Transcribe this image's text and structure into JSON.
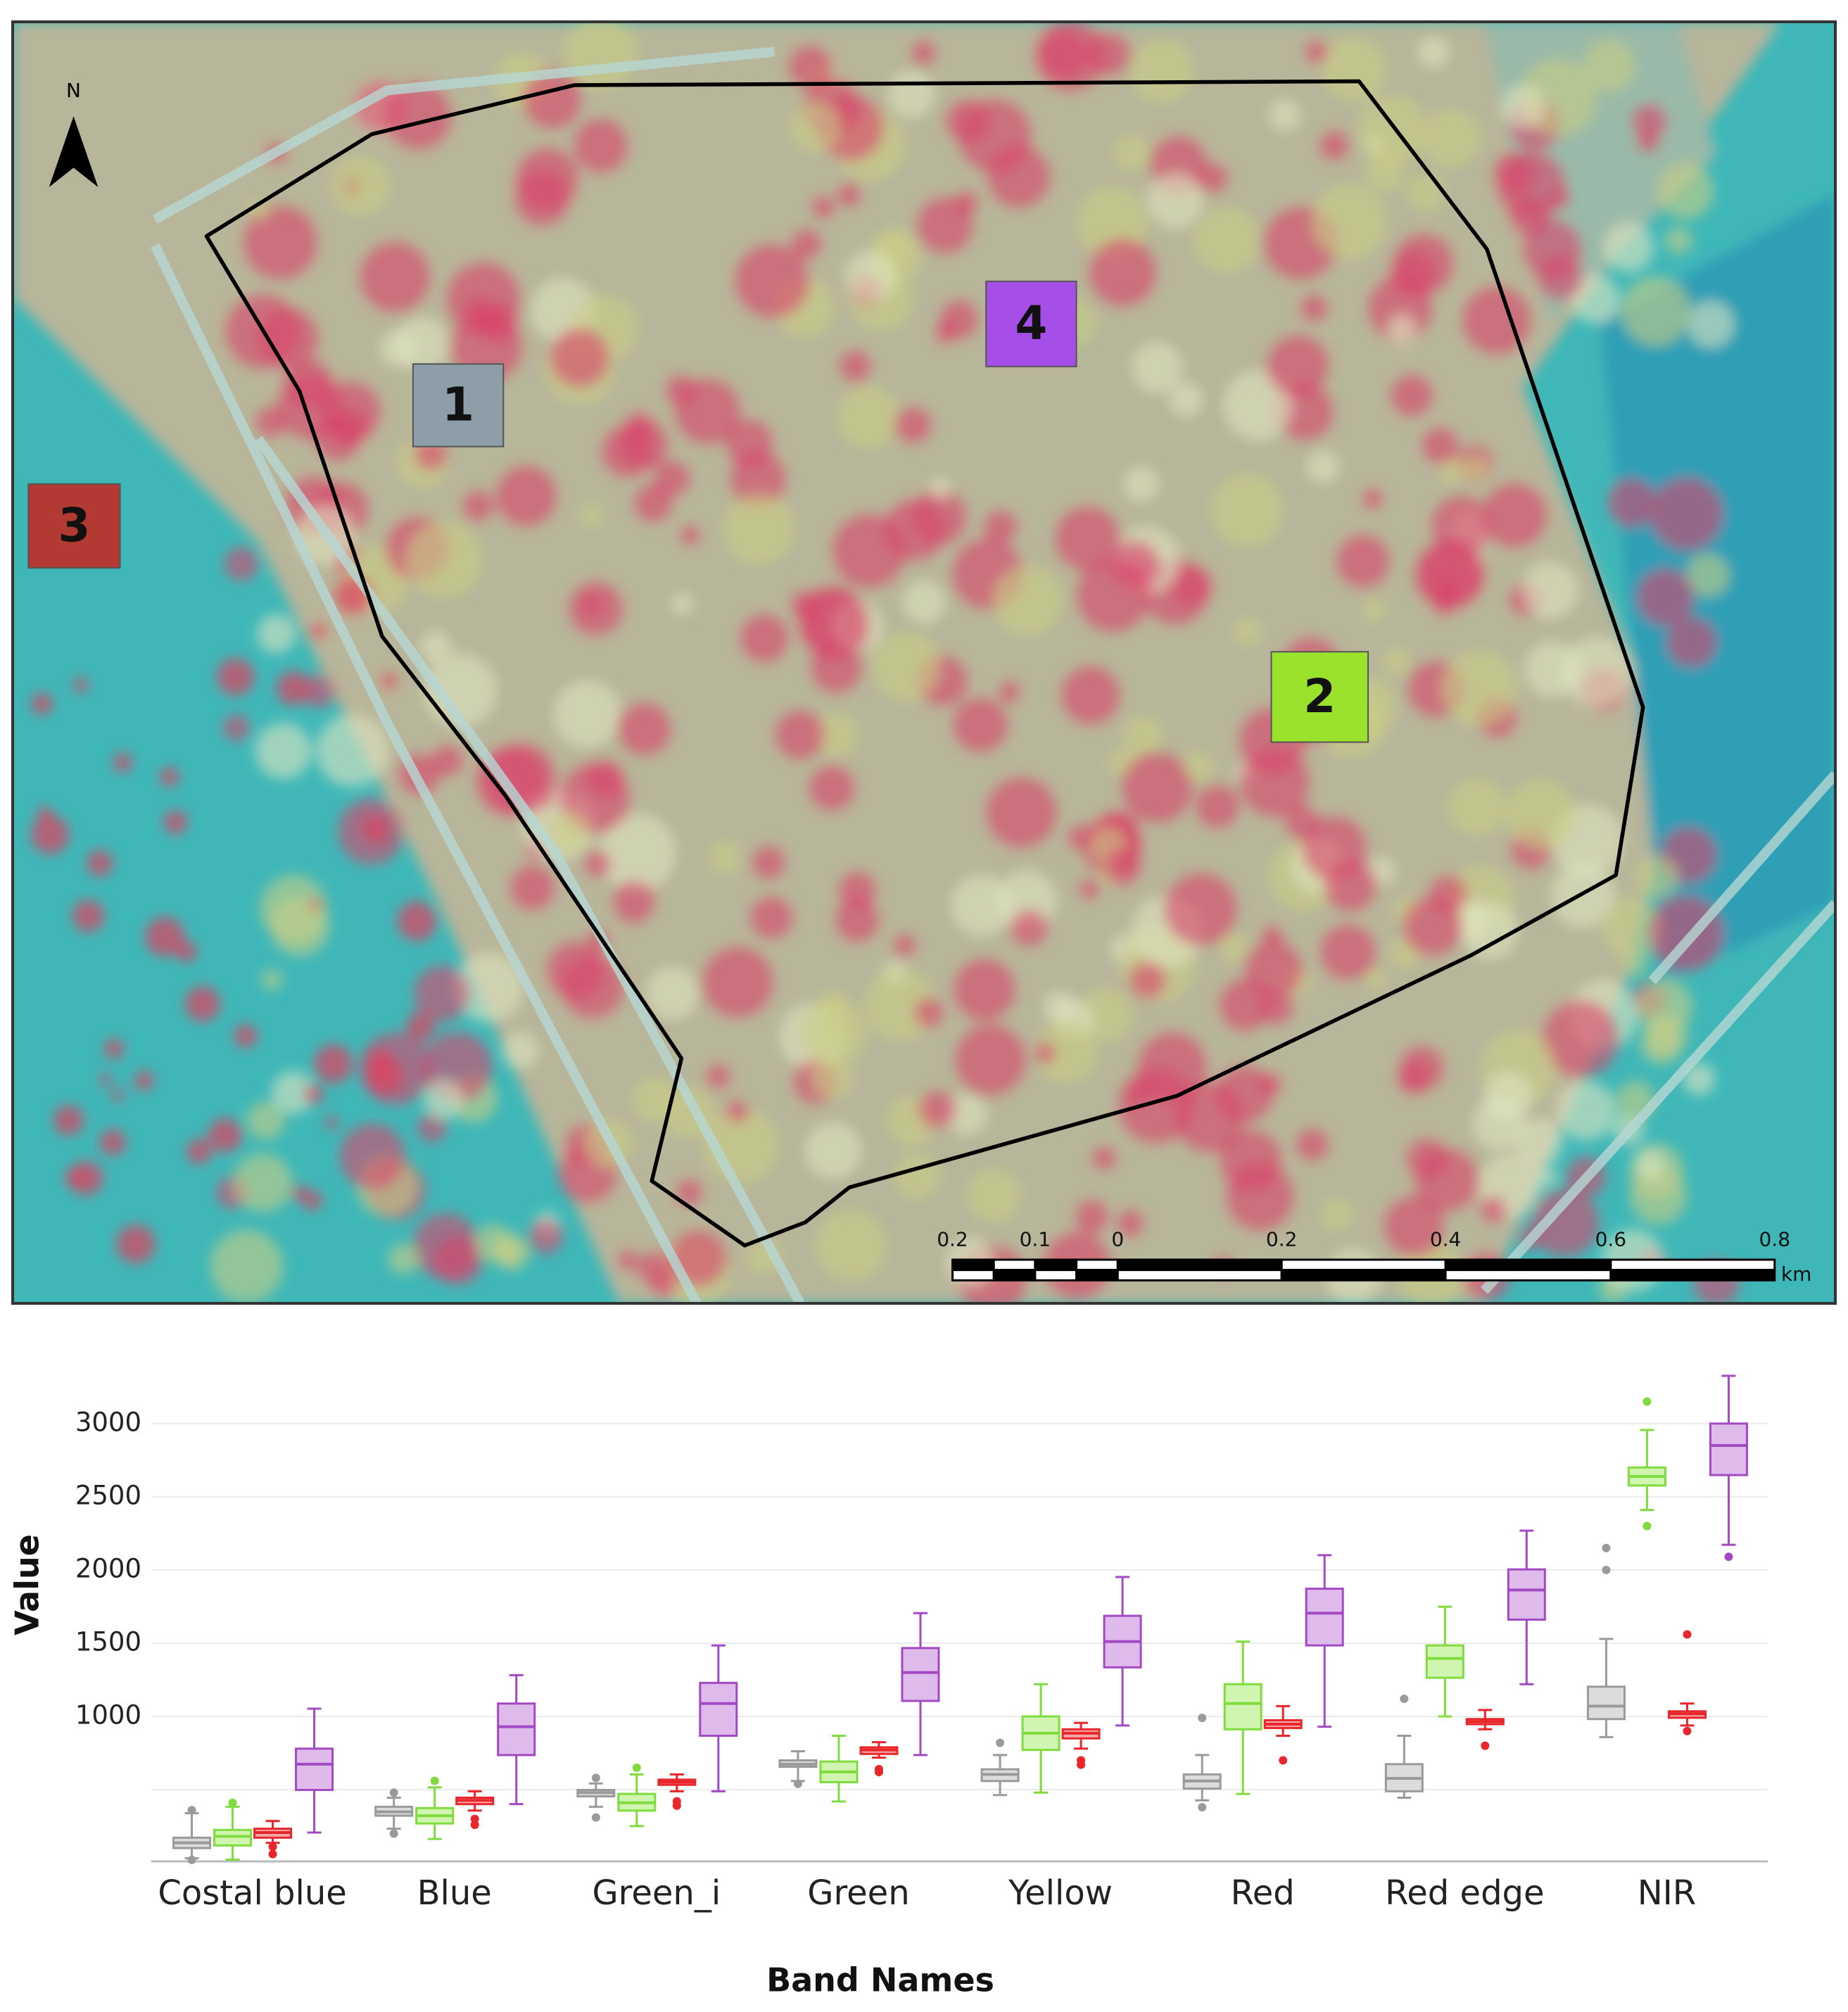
{
  "map": {
    "north": "N",
    "labels": [
      "1",
      "2",
      "3",
      "4"
    ],
    "scale_bar": {
      "labels": [
        "0.2",
        "0.1",
        "0",
        "0.2",
        "0.4",
        "0.6",
        "0.8"
      ],
      "unit": "km"
    }
  },
  "chart_data": {
    "type": "box",
    "ylabel": "Value",
    "xlabel": "Band Names",
    "categories": [
      "Costal blue",
      "Blue",
      "Green_i",
      "Green",
      "Yellow",
      "Red",
      "Red edge",
      "NIR"
    ],
    "ylim": [
      10,
      3350
    ],
    "yticks": [
      1000,
      1500,
      2000,
      2500,
      3000
    ],
    "gridlines": [
      500,
      1000,
      1500,
      2000,
      2500,
      3000
    ],
    "series": [
      {
        "color": "#9a9a9a",
        "fill": "#dcdcdc",
        "values": [
          {
            "low": 31,
            "q1": 101,
            "median": 137,
            "q3": 172,
            "high": 339,
            "outliers": [
              360,
              20
            ]
          },
          {
            "low": 233,
            "q1": 322,
            "median": 348,
            "q3": 383,
            "high": 445,
            "outliers": [
              480,
              200
            ]
          },
          {
            "low": 383,
            "q1": 454,
            "median": 480,
            "q3": 498,
            "high": 542,
            "outliers": [
              580,
              310
            ]
          },
          {
            "low": 559,
            "q1": 656,
            "median": 674,
            "q3": 700,
            "high": 762,
            "outliers": [
              540
            ]
          },
          {
            "low": 463,
            "q1": 559,
            "median": 604,
            "q3": 639,
            "high": 736,
            "outliers": [
              820
            ]
          },
          {
            "low": 427,
            "q1": 507,
            "median": 559,
            "q3": 604,
            "high": 736,
            "outliers": [
              990,
              380
            ]
          },
          {
            "low": 445,
            "q1": 489,
            "median": 577,
            "q3": 674,
            "high": 868,
            "outliers": [
              1120
            ]
          },
          {
            "low": 859,
            "q1": 982,
            "median": 1070,
            "q3": 1203,
            "high": 1529,
            "outliers": [
              2000,
              2150
            ]
          }
        ]
      },
      {
        "color": "#7fdc3c",
        "fill": "#cff5b0",
        "values": [
          {
            "low": 22,
            "q1": 119,
            "median": 181,
            "q3": 225,
            "high": 383,
            "outliers": [
              410
            ]
          },
          {
            "low": 163,
            "q1": 269,
            "median": 322,
            "q3": 374,
            "high": 515,
            "outliers": [
              560
            ]
          },
          {
            "low": 251,
            "q1": 357,
            "median": 410,
            "q3": 471,
            "high": 604,
            "outliers": [
              650
            ]
          },
          {
            "low": 419,
            "q1": 551,
            "median": 621,
            "q3": 692,
            "high": 868,
            "outliers": []
          },
          {
            "low": 480,
            "q1": 771,
            "median": 885,
            "q3": 1000,
            "high": 1220,
            "outliers": []
          },
          {
            "low": 471,
            "q1": 912,
            "median": 1088,
            "q3": 1220,
            "high": 1511,
            "outliers": []
          },
          {
            "low": 1000,
            "q1": 1264,
            "median": 1396,
            "q3": 1485,
            "high": 1749,
            "outliers": []
          },
          {
            "low": 2410,
            "q1": 2577,
            "median": 2639,
            "q3": 2700,
            "high": 2956,
            "outliers": [
              3150,
              2300
            ]
          }
        ]
      },
      {
        "color": "#e8262b",
        "fill": "#f6a9a9",
        "values": [
          {
            "low": 137,
            "q1": 172,
            "median": 207,
            "q3": 233,
            "high": 286,
            "outliers": [
              110,
              60
            ]
          },
          {
            "low": 357,
            "q1": 401,
            "median": 427,
            "q3": 445,
            "high": 489,
            "outliers": [
              300,
              260
            ]
          },
          {
            "low": 489,
            "q1": 533,
            "median": 551,
            "q3": 568,
            "high": 604,
            "outliers": [
              420,
              390
            ]
          },
          {
            "low": 718,
            "q1": 744,
            "median": 771,
            "q3": 789,
            "high": 824,
            "outliers": [
              640,
              620
            ]
          },
          {
            "low": 780,
            "q1": 850,
            "median": 885,
            "q3": 912,
            "high": 956,
            "outliers": [
              700,
              670
            ]
          },
          {
            "low": 868,
            "q1": 921,
            "median": 947,
            "q3": 974,
            "high": 1070,
            "outliers": [
              700
            ]
          },
          {
            "low": 912,
            "q1": 947,
            "median": 965,
            "q3": 982,
            "high": 1044,
            "outliers": [
              800
            ]
          },
          {
            "low": 938,
            "q1": 991,
            "median": 1018,
            "q3": 1035,
            "high": 1088,
            "outliers": [
              1560,
              900
            ]
          }
        ]
      },
      {
        "color": "#a349c4",
        "fill": "#dfbbec",
        "values": [
          {
            "low": 207,
            "q1": 498,
            "median": 674,
            "q3": 780,
            "high": 1053,
            "outliers": []
          },
          {
            "low": 401,
            "q1": 736,
            "median": 930,
            "q3": 1088,
            "high": 1282,
            "outliers": []
          },
          {
            "low": 489,
            "q1": 868,
            "median": 1088,
            "q3": 1229,
            "high": 1485,
            "outliers": []
          },
          {
            "low": 736,
            "q1": 1106,
            "median": 1300,
            "q3": 1467,
            "high": 1705,
            "outliers": []
          },
          {
            "low": 938,
            "q1": 1335,
            "median": 1511,
            "q3": 1687,
            "high": 1952,
            "outliers": []
          },
          {
            "low": 930,
            "q1": 1485,
            "median": 1705,
            "q3": 1872,
            "high": 2101,
            "outliers": []
          },
          {
            "low": 1220,
            "q1": 1661,
            "median": 1863,
            "q3": 2004,
            "high": 2269,
            "outliers": []
          },
          {
            "low": 2172,
            "q1": 2648,
            "median": 2850,
            "q3": 3000,
            "high": 3326,
            "outliers": [
              2090
            ]
          }
        ]
      }
    ]
  }
}
